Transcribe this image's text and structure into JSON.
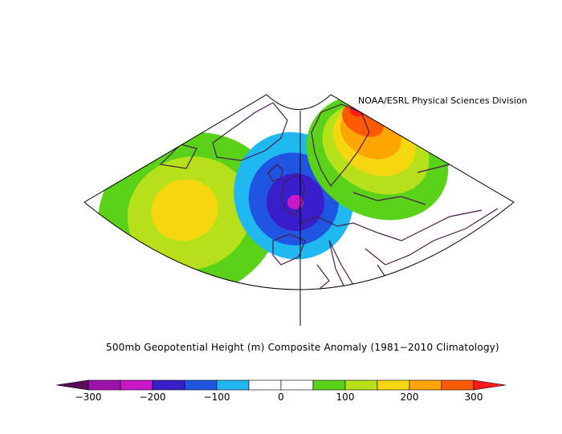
{
  "credit": "NOAA/ESRL Physical Sciences Division",
  "caption": "500mb Geopotential Height (m) Composite Anomaly (1981−2010 Climatology)",
  "colorbar": {
    "colors": [
      "#5a0a5a",
      "#9b12a8",
      "#c818c8",
      "#3a1ecc",
      "#1f55e0",
      "#1fb8f0",
      "#ffffff",
      "#ffffff",
      "#5bd21a",
      "#b6e11a",
      "#f5d70f",
      "#ffa500",
      "#ff5a00",
      "#ff1a1a"
    ],
    "ticks": [
      {
        "label": "−300",
        "value": -300
      },
      {
        "label": "−200",
        "value": -200
      },
      {
        "label": "−100",
        "value": -100
      },
      {
        "label": "0",
        "value": 0
      },
      {
        "label": "100",
        "value": 100
      },
      {
        "label": "200",
        "value": 200
      },
      {
        "label": "300",
        "value": 300
      }
    ]
  }
}
